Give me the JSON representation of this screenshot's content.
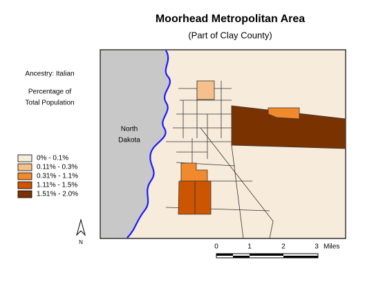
{
  "header": {
    "title": "Moorhead Metropolitan Area",
    "subtitle": "(Part of Clay County)"
  },
  "side": {
    "variable": "Ancestry: Italian",
    "measure_line1": "Percentage of",
    "measure_line2": "Total Population"
  },
  "legend": [
    {
      "label": "0% - 0.1%",
      "color": "#f7ebdb"
    },
    {
      "label": "0.11% - 0.3%",
      "color": "#f5c08c"
    },
    {
      "label": "0.31% - 1.1%",
      "color": "#f08a2c"
    },
    {
      "label": "1.11% - 1.5%",
      "color": "#cc5500"
    },
    {
      "label": "1.51% - 2.0%",
      "color": "#7a3300"
    }
  ],
  "map": {
    "region_label_line1": "North",
    "region_label_line2": "Dakota"
  },
  "north_arrow": {
    "label": "N"
  },
  "scale_bar": {
    "labels": [
      "0",
      "1",
      "2",
      "3"
    ],
    "unit": "Miles"
  }
}
